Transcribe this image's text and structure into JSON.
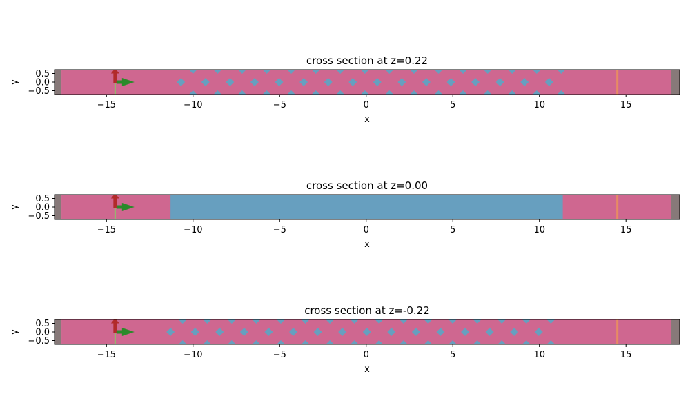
{
  "chart_data": [
    {
      "type": "cross-section",
      "title": "cross section at z=0.22",
      "xlabel": "x",
      "ylabel": "y",
      "xlim": [
        -18.0,
        18.1
      ],
      "ylim": [
        -0.72,
        0.72
      ],
      "xticks": [
        -15,
        -10,
        -5,
        0,
        5,
        10,
        15
      ],
      "xtick_labels": [
        "−15",
        "−10",
        "−5",
        "0",
        "5",
        "10",
        "15"
      ],
      "yticks": [
        0.5,
        0.0,
        -0.5
      ],
      "ytick_labels": [
        "0.5",
        "0.0",
        "−0.5"
      ],
      "domain_x": [
        -17.6,
        17.6
      ],
      "pml_regions": [
        [
          -18.0,
          -17.6
        ],
        [
          17.6,
          18.1
        ]
      ],
      "waveguide_x": null,
      "holes_center_row": {
        "y": 0.0,
        "x_start": -10.7,
        "pitch": 1.4175,
        "count": 16
      },
      "holes_edge_rows": {
        "y": [
          0.72,
          -0.72
        ],
        "x_start": -10.0,
        "pitch": 1.4175,
        "count": 16
      },
      "source_x": -14.5,
      "monitor_x": 14.5,
      "colors": {
        "background": "#cf6790",
        "waveguide": "#679fbf",
        "holes": "#679fbf",
        "pml": "#877979",
        "source_line": "#8dc16a",
        "monitor": "#e78b63",
        "source_arrow": "#b22a2a",
        "direction_arrow": "#2a8a2a"
      }
    },
    {
      "type": "cross-section",
      "title": "cross section at z=0.00",
      "xlabel": "x",
      "ylabel": "y",
      "xlim": [
        -18.0,
        18.1
      ],
      "ylim": [
        -0.72,
        0.72
      ],
      "xticks": [
        -15,
        -10,
        -5,
        0,
        5,
        10,
        15
      ],
      "xtick_labels": [
        "−15",
        "−10",
        "−5",
        "0",
        "5",
        "10",
        "15"
      ],
      "yticks": [
        0.5,
        0.0,
        -0.5
      ],
      "ytick_labels": [
        "0.5",
        "0.0",
        "−0.5"
      ],
      "domain_x": [
        -17.6,
        17.6
      ],
      "pml_regions": [
        [
          -18.0,
          -17.6
        ],
        [
          17.6,
          18.1
        ]
      ],
      "waveguide_x": [
        -11.3,
        11.35
      ],
      "holes_center_row": null,
      "holes_edge_rows": null,
      "source_x": -14.5,
      "monitor_x": 14.5,
      "colors": {
        "background": "#cf6790",
        "waveguide": "#679fbf",
        "holes": "#679fbf",
        "pml": "#877979",
        "source_line": "#8dc16a",
        "monitor": "#e78b63",
        "source_arrow": "#b22a2a",
        "direction_arrow": "#2a8a2a"
      }
    },
    {
      "type": "cross-section",
      "title": "cross section at z=-0.22",
      "xlabel": "x",
      "ylabel": "y",
      "xlim": [
        -18.0,
        18.1
      ],
      "ylim": [
        -0.72,
        0.72
      ],
      "xticks": [
        -15,
        -10,
        -5,
        0,
        5,
        10,
        15
      ],
      "xtick_labels": [
        "−15",
        "−10",
        "−5",
        "0",
        "5",
        "10",
        "15"
      ],
      "yticks": [
        0.5,
        0.0,
        -0.5
      ],
      "ytick_labels": [
        "0.5",
        "0.0",
        "−0.5"
      ],
      "domain_x": [
        -17.6,
        17.6
      ],
      "pml_regions": [
        [
          -18.0,
          -17.6
        ],
        [
          17.6,
          18.1
        ]
      ],
      "waveguide_x": null,
      "holes_center_row": {
        "y": 0.0,
        "x_start": -11.3,
        "pitch": 1.4175,
        "count": 16
      },
      "holes_edge_rows": {
        "y": [
          0.72,
          -0.72
        ],
        "x_start": -10.6,
        "pitch": 1.4175,
        "count": 16
      },
      "source_x": -14.5,
      "monitor_x": 14.5,
      "colors": {
        "background": "#cf6790",
        "waveguide": "#679fbf",
        "holes": "#679fbf",
        "pml": "#877979",
        "source_line": "#8dc16a",
        "monitor": "#e78b63",
        "source_arrow": "#b22a2a",
        "direction_arrow": "#2a8a2a"
      }
    }
  ]
}
